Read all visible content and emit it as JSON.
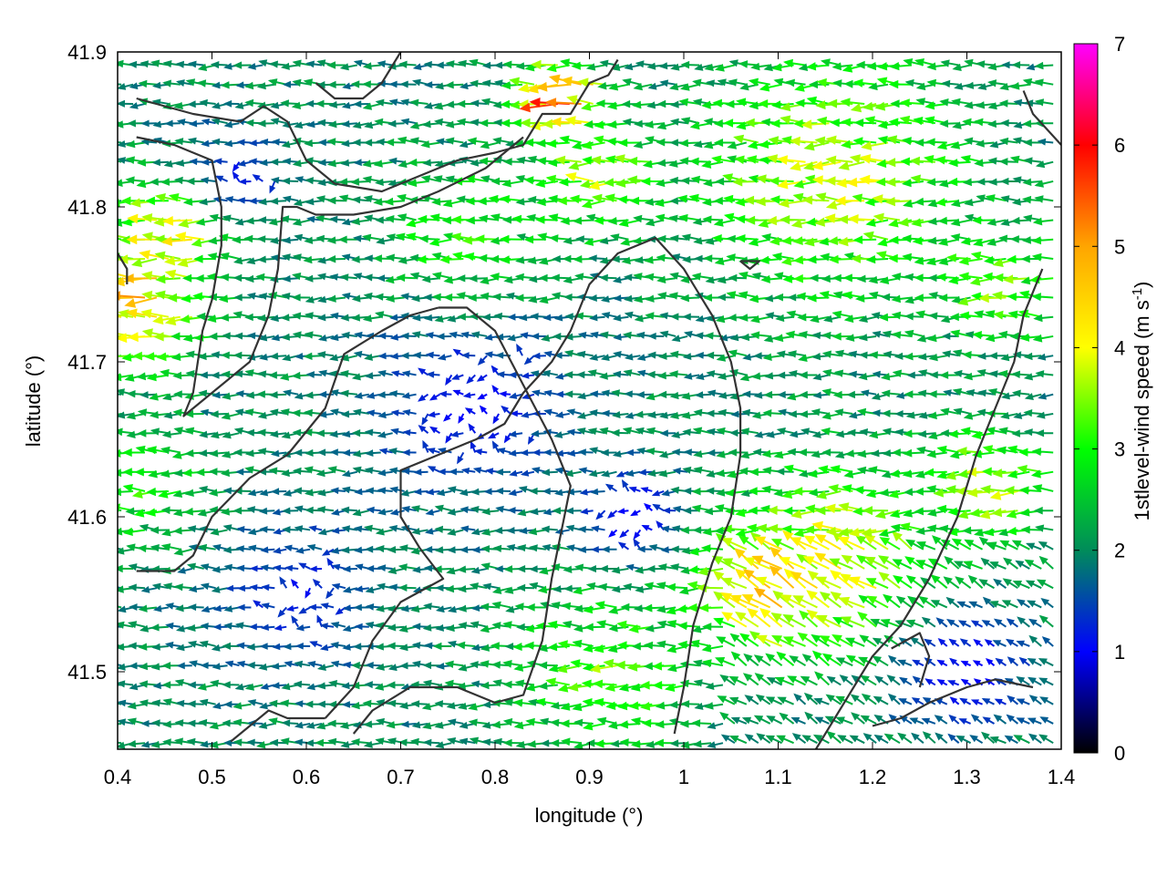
{
  "chart_data": {
    "type": "vector-field",
    "title": "",
    "xlabel": "longitude (°)",
    "ylabel": "latitude (°)",
    "xlim": [
      0.4,
      1.4
    ],
    "ylim": [
      41.45,
      41.9
    ],
    "xticks": [
      "0.4",
      "0.5",
      "0.6",
      "0.7",
      "0.8",
      "0.9",
      "1",
      "1.1",
      "1.2",
      "1.3",
      "1.4"
    ],
    "yticks": [
      "41.5",
      "41.6",
      "41.7",
      "41.8",
      "41.9"
    ],
    "colorbar": {
      "label_main": "1stlevel-wind speed (m s",
      "label_sup": "-1",
      "label_end": ")",
      "range": [
        0,
        7
      ],
      "ticks": [
        "0",
        "1",
        "2",
        "3",
        "4",
        "5",
        "6",
        "7"
      ],
      "colormap": [
        "#000000",
        "#0000ff",
        "#008c5a",
        "#00ff00",
        "#ffff00",
        "#ffa500",
        "#ff0000",
        "#ff00ff"
      ]
    },
    "wind": {
      "grid_step_lon": 0.0125,
      "grid_step_lat": 0.0125,
      "predominant_direction": "westward (easterly wind)",
      "speed_regions": [
        {
          "center": [
            0.43,
            41.74
          ],
          "radius": 0.07,
          "speed": 4.5
        },
        {
          "center": [
            0.47,
            41.79
          ],
          "radius": 0.05,
          "speed": 4.3
        },
        {
          "center": [
            0.88,
            41.87
          ],
          "radius": 0.04,
          "speed": 5.5
        },
        {
          "center": [
            0.92,
            41.82
          ],
          "radius": 0.06,
          "speed": 3.6
        },
        {
          "center": [
            1.17,
            41.82
          ],
          "radius": 0.13,
          "speed": 3.8
        },
        {
          "center": [
            0.78,
            41.78
          ],
          "radius": 0.08,
          "speed": 3.0
        },
        {
          "center": [
            1.1,
            41.55
          ],
          "radius": 0.06,
          "speed": 5.2
        },
        {
          "center": [
            1.17,
            41.57
          ],
          "radius": 0.1,
          "speed": 4.0
        },
        {
          "center": [
            0.93,
            41.5
          ],
          "radius": 0.09,
          "speed": 3.3
        },
        {
          "center": [
            1.33,
            41.62
          ],
          "radius": 0.06,
          "speed": 3.8
        },
        {
          "center": [
            1.35,
            41.75
          ],
          "radius": 0.06,
          "speed": 3.4
        },
        {
          "center": [
            0.44,
            41.62
          ],
          "radius": 0.06,
          "speed": 3.0
        },
        {
          "center": [
            0.78,
            41.67
          ],
          "radius": 0.1,
          "speed": 1.1
        },
        {
          "center": [
            0.6,
            41.55
          ],
          "radius": 0.08,
          "speed": 1.2
        },
        {
          "center": [
            0.53,
            41.82
          ],
          "radius": 0.05,
          "speed": 1.2
        },
        {
          "center": [
            0.95,
            41.6
          ],
          "radius": 0.05,
          "speed": 0.9
        },
        {
          "center": [
            1.3,
            41.5
          ],
          "radius": 0.07,
          "speed": 1.0
        }
      ]
    },
    "contours": [
      [
        [
          0.42,
          41.87
        ],
        [
          0.48,
          41.86
        ],
        [
          0.53,
          41.855
        ],
        [
          0.555,
          41.865
        ],
        [
          0.58,
          41.855
        ],
        [
          0.6,
          41.83
        ],
        [
          0.63,
          41.815
        ],
        [
          0.68,
          41.81
        ],
        [
          0.72,
          41.82
        ],
        [
          0.76,
          41.83
        ],
        [
          0.8,
          41.835
        ],
        [
          0.83,
          41.84
        ],
        [
          0.85,
          41.86
        ],
        [
          0.88,
          41.86
        ],
        [
          0.9,
          41.88
        ],
        [
          0.92,
          41.885
        ],
        [
          0.93,
          41.895
        ]
      ],
      [
        [
          0.42,
          41.845
        ],
        [
          0.46,
          41.84
        ],
        [
          0.5,
          41.83
        ],
        [
          0.51,
          41.8
        ],
        [
          0.51,
          41.775
        ],
        [
          0.5,
          41.74
        ],
        [
          0.49,
          41.72
        ],
        [
          0.48,
          41.68
        ],
        [
          0.47,
          41.665
        ],
        [
          0.5,
          41.68
        ],
        [
          0.54,
          41.7
        ],
        [
          0.56,
          41.73
        ],
        [
          0.57,
          41.76
        ],
        [
          0.575,
          41.8
        ],
        [
          0.59,
          41.8
        ],
        [
          0.61,
          41.795
        ],
        [
          0.65,
          41.795
        ],
        [
          0.7,
          41.8
        ],
        [
          0.74,
          41.81
        ],
        [
          0.79,
          41.825
        ],
        [
          0.83,
          41.845
        ]
      ],
      [
        [
          0.74,
          41.735
        ],
        [
          0.71,
          41.73
        ],
        [
          0.68,
          41.72
        ],
        [
          0.64,
          41.705
        ],
        [
          0.62,
          41.67
        ],
        [
          0.58,
          41.64
        ],
        [
          0.54,
          41.625
        ],
        [
          0.5,
          41.6
        ],
        [
          0.48,
          41.575
        ],
        [
          0.46,
          41.565
        ],
        [
          0.42,
          41.565
        ]
      ],
      [
        [
          0.74,
          41.735
        ],
        [
          0.77,
          41.735
        ],
        [
          0.8,
          41.72
        ],
        [
          0.83,
          41.685
        ],
        [
          0.86,
          41.65
        ],
        [
          0.88,
          41.62
        ],
        [
          0.87,
          41.59
        ],
        [
          0.86,
          41.56
        ],
        [
          0.85,
          41.52
        ],
        [
          0.83,
          41.485
        ],
        [
          0.8,
          41.48
        ],
        [
          0.76,
          41.49
        ],
        [
          0.71,
          41.49
        ],
        [
          0.67,
          41.475
        ],
        [
          0.65,
          41.46
        ]
      ],
      [
        [
          0.62,
          41.47
        ],
        [
          0.58,
          41.47
        ],
        [
          0.56,
          41.475
        ],
        [
          0.54,
          41.465
        ],
        [
          0.52,
          41.455
        ]
      ],
      [
        [
          0.62,
          41.47
        ],
        [
          0.65,
          41.49
        ],
        [
          0.67,
          41.52
        ],
        [
          0.7,
          41.545
        ],
        [
          0.73,
          41.555
        ],
        [
          0.745,
          41.56
        ],
        [
          0.72,
          41.58
        ],
        [
          0.7,
          41.6
        ],
        [
          0.7,
          41.63
        ],
        [
          0.74,
          41.64
        ],
        [
          0.78,
          41.65
        ],
        [
          0.81,
          41.66
        ],
        [
          0.83,
          41.68
        ],
        [
          0.86,
          41.7
        ],
        [
          0.88,
          41.72
        ],
        [
          0.9,
          41.75
        ],
        [
          0.93,
          41.77
        ],
        [
          0.97,
          41.78
        ],
        [
          1.0,
          41.76
        ],
        [
          1.03,
          41.73
        ],
        [
          1.05,
          41.7
        ],
        [
          1.06,
          41.67
        ],
        [
          1.06,
          41.64
        ],
        [
          1.05,
          41.6
        ],
        [
          1.03,
          41.57
        ],
        [
          1.01,
          41.53
        ],
        [
          1.0,
          41.49
        ],
        [
          0.99,
          41.46
        ]
      ],
      [
        [
          1.2,
          41.465
        ],
        [
          1.23,
          41.47
        ],
        [
          1.26,
          41.48
        ],
        [
          1.3,
          41.49
        ],
        [
          1.33,
          41.495
        ],
        [
          1.37,
          41.49
        ]
      ],
      [
        [
          1.22,
          41.515
        ],
        [
          1.25,
          41.525
        ],
        [
          1.26,
          41.51
        ],
        [
          1.25,
          41.49
        ]
      ],
      [
        [
          1.06,
          41.765
        ],
        [
          1.08,
          41.765
        ],
        [
          1.07,
          41.76
        ],
        [
          1.06,
          41.765
        ]
      ],
      [
        [
          1.14,
          41.45
        ],
        [
          1.16,
          41.47
        ],
        [
          1.18,
          41.49
        ],
        [
          1.2,
          41.51
        ],
        [
          1.23,
          41.53
        ],
        [
          1.26,
          41.56
        ],
        [
          1.29,
          41.6
        ],
        [
          1.31,
          41.64
        ],
        [
          1.33,
          41.67
        ],
        [
          1.35,
          41.7
        ],
        [
          1.36,
          41.73
        ],
        [
          1.38,
          41.76
        ]
      ],
      [
        [
          1.36,
          41.875
        ],
        [
          1.37,
          41.86
        ],
        [
          1.4,
          41.84
        ]
      ],
      [
        [
          0.61,
          41.88
        ],
        [
          0.63,
          41.87
        ],
        [
          0.66,
          41.87
        ],
        [
          0.68,
          41.88
        ],
        [
          0.7,
          41.9
        ]
      ],
      [
        [
          0.4,
          41.77
        ],
        [
          0.41,
          41.76
        ],
        [
          0.41,
          41.75
        ]
      ]
    ]
  }
}
